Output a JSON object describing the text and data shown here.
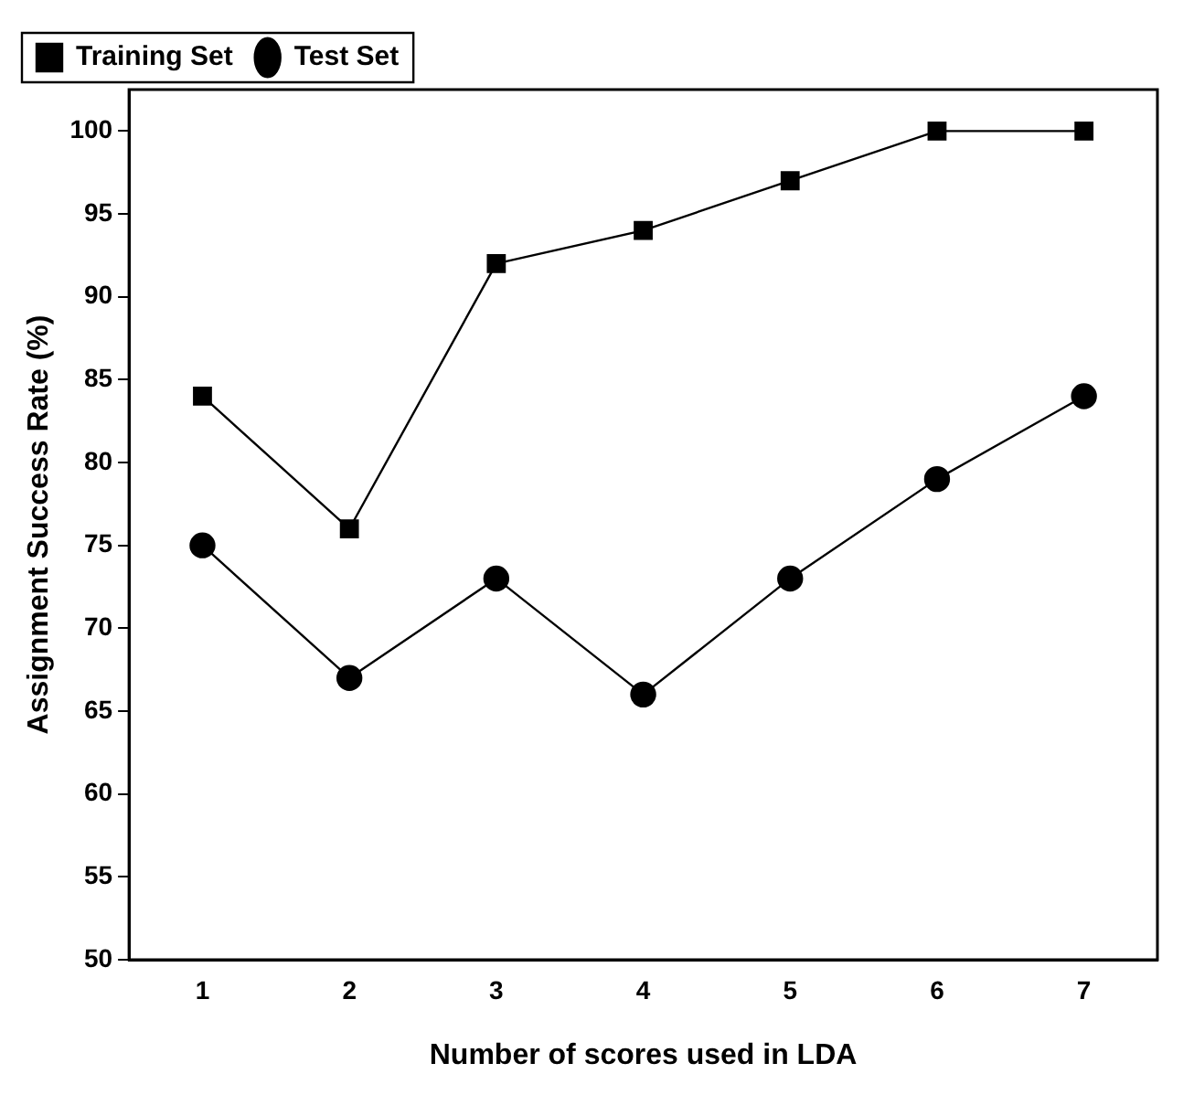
{
  "chart_data": {
    "type": "line",
    "xlabel": "Number of scores used in LDA",
    "ylabel": "Assignment Success Rate (%)",
    "x": [
      1,
      2,
      3,
      4,
      5,
      6,
      7
    ],
    "series": [
      {
        "name": "Training Set",
        "color": "#000000",
        "marker": "square",
        "values": [
          84,
          76,
          92,
          94,
          97,
          100,
          100
        ]
      },
      {
        "name": "Test Set",
        "color": "#000000",
        "marker": "circle",
        "values": [
          75,
          67,
          73,
          66,
          73,
          79,
          84
        ]
      }
    ],
    "xlim": [
      0.5,
      7.5
    ],
    "xticks": [
      1,
      2,
      3,
      4,
      5,
      6,
      7
    ],
    "ylim": [
      50,
      102.5
    ],
    "yticks": [
      50,
      55,
      60,
      65,
      70,
      75,
      80,
      85,
      90,
      95,
      100
    ],
    "grid": false,
    "legend": "top left",
    "line_style": "solid"
  }
}
